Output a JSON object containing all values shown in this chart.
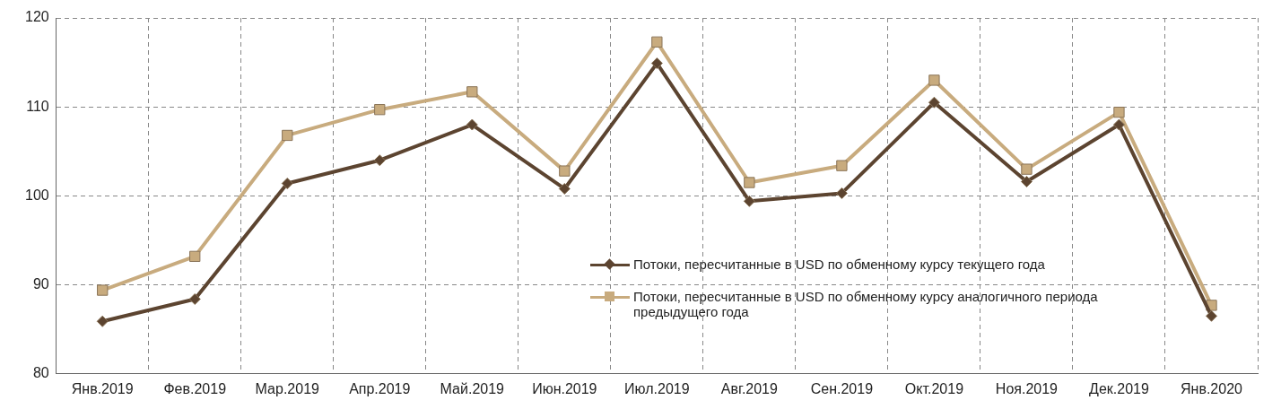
{
  "chart_data": {
    "type": "line",
    "categories": [
      "Янв.2019",
      "Фев.2019",
      "Мар.2019",
      "Апр.2019",
      "Май.2019",
      "Июн.2019",
      "Июл.2019",
      "Авг.2019",
      "Сен.2019",
      "Окт.2019",
      "Ноя.2019",
      "Дек.2019",
      "Янв.2020"
    ],
    "series": [
      {
        "name": "Потоки, пересчитанные в USD по обменному курсу текущего года",
        "color": "#5c4430",
        "marker": "diamond",
        "values": [
          85.9,
          88.4,
          101.4,
          104.0,
          108.0,
          100.8,
          114.9,
          99.4,
          100.3,
          110.5,
          101.6,
          108.0,
          86.5
        ]
      },
      {
        "name": "Потоки, пересчитанные в USD по обменному курсу аналогичного периода предыдущего года",
        "color": "#c8ab7e",
        "marker": "square",
        "values": [
          89.4,
          93.2,
          106.8,
          109.7,
          111.7,
          102.8,
          117.3,
          101.5,
          103.4,
          113.0,
          103.0,
          109.4,
          87.7
        ]
      }
    ],
    "ylim": [
      80,
      120
    ],
    "yticks": [
      80,
      90,
      100,
      110,
      120
    ],
    "grid": true,
    "legend": "right",
    "line_style": "solid"
  }
}
